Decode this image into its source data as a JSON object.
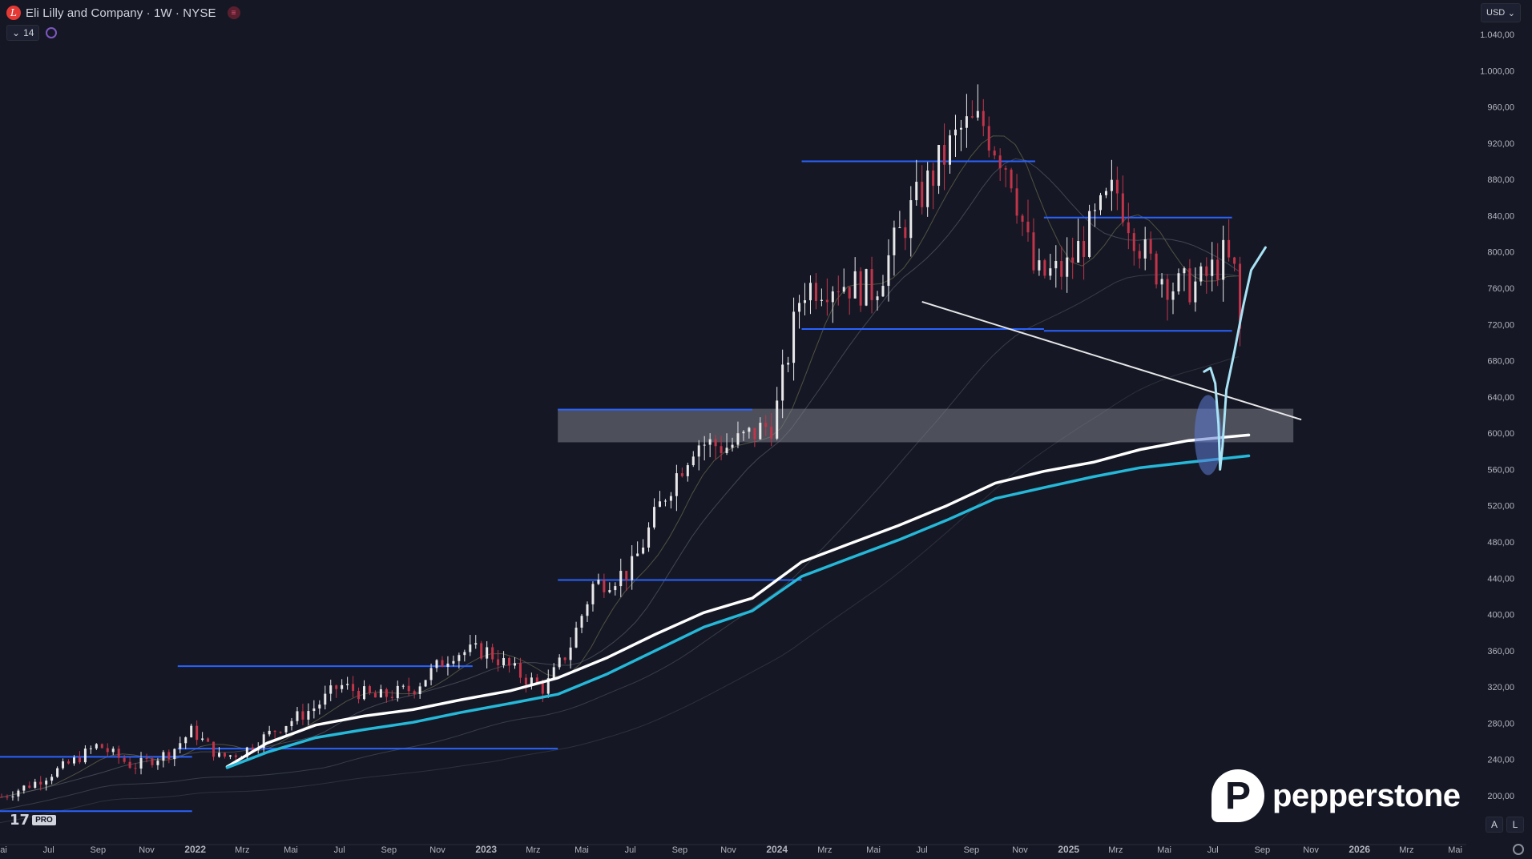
{
  "header": {
    "title": "Eli Lilly and Company · 1W · NYSE",
    "logo_letter": "L",
    "indicator_count": "14"
  },
  "currency": {
    "label": "USD",
    "chevron": "⌄"
  },
  "scale_buttons": {
    "auto": "A",
    "log": "L"
  },
  "tradingview": {
    "mark": "17",
    "badge": "PRO"
  },
  "watermark": {
    "brand": "pepperstone",
    "icon_letter": "P"
  },
  "colors": {
    "background": "#151824",
    "up_candle": "#e8e8ea",
    "down_candle": "#c2344a",
    "ema_white": "#ffffff",
    "ema_cyan": "#26b8d9",
    "level_lines": "#2962ff",
    "zone_fill": "#7b7e88",
    "drawing_cyan": "#a8e3f5",
    "axis_text": "#b2b5be"
  },
  "chart_data": {
    "type": "candlestick",
    "symbol": "Eli Lilly and Company",
    "interval": "1W",
    "exchange": "NYSE",
    "y_axis_ticks": [
      "1.040,00",
      "1.000,00",
      "960,00",
      "920,00",
      "880,00",
      "840,00",
      "800,00",
      "760,00",
      "720,00",
      "680,00",
      "640,00",
      "600,00",
      "560,00",
      "520,00",
      "480,00",
      "440,00",
      "400,00",
      "360,00",
      "320,00",
      "280,00",
      "240,00",
      "200,00"
    ],
    "x_axis_ticks": [
      "Mai",
      "Jul",
      "Sep",
      "Nov",
      "2022",
      "Mrz",
      "Mai",
      "Jul",
      "Sep",
      "Nov",
      "2023",
      "Mrz",
      "Mai",
      "Jul",
      "Sep",
      "Nov",
      "2024",
      "Mrz",
      "Mai",
      "Jul",
      "Sep",
      "Nov",
      "2025",
      "Mrz",
      "Mai",
      "Jul",
      "Sep",
      "Nov",
      "2026",
      "Mrz",
      "Mai"
    ],
    "ylim": [
      170,
      1060
    ],
    "x_range": [
      "2021-05-01",
      "2026-05-15"
    ],
    "close_path": [
      [
        "2021-05-01",
        198
      ],
      [
        "2021-06-15",
        215
      ],
      [
        "2021-08-01",
        238
      ],
      [
        "2021-09-01",
        256
      ],
      [
        "2021-10-15",
        232
      ],
      [
        "2021-12-01",
        248
      ],
      [
        "2021-12-28",
        272
      ],
      [
        "2022-02-01",
        242
      ],
      [
        "2022-03-01",
        248
      ],
      [
        "2022-04-15",
        275
      ],
      [
        "2022-06-01",
        298
      ],
      [
        "2022-07-01",
        322
      ],
      [
        "2022-08-15",
        308
      ],
      [
        "2022-10-01",
        318
      ],
      [
        "2022-11-20",
        358
      ],
      [
        "2023-01-01",
        360
      ],
      [
        "2023-02-15",
        332
      ],
      [
        "2023-03-15",
        318
      ],
      [
        "2023-04-15",
        362
      ],
      [
        "2023-05-15",
        432
      ],
      [
        "2023-07-01",
        448
      ],
      [
        "2023-08-15",
        535
      ],
      [
        "2023-09-20",
        590
      ],
      [
        "2023-11-01",
        585
      ],
      [
        "2023-12-28",
        612
      ],
      [
        "2024-02-01",
        760
      ],
      [
        "2024-03-15",
        768
      ],
      [
        "2024-05-01",
        758
      ],
      [
        "2024-06-15",
        842
      ],
      [
        "2024-08-01",
        910
      ],
      [
        "2024-08-20",
        935
      ],
      [
        "2024-09-15",
        942
      ],
      [
        "2024-10-20",
        890
      ],
      [
        "2024-11-20",
        772
      ],
      [
        "2024-12-28",
        780
      ],
      [
        "2025-02-01",
        830
      ],
      [
        "2025-03-01",
        870
      ],
      [
        "2025-04-10",
        790
      ],
      [
        "2025-05-15",
        760
      ],
      [
        "2025-06-15",
        765
      ],
      [
        "2025-07-15",
        795
      ],
      [
        "2025-08-01",
        770
      ],
      [
        "2025-08-08",
        635
      ]
    ],
    "ema_white_path": [
      [
        "2022-02-10",
        232
      ],
      [
        "2022-04-01",
        258
      ],
      [
        "2022-06-01",
        278
      ],
      [
        "2022-08-01",
        288
      ],
      [
        "2022-10-01",
        295
      ],
      [
        "2022-12-01",
        306
      ],
      [
        "2023-02-01",
        316
      ],
      [
        "2023-04-01",
        330
      ],
      [
        "2023-06-01",
        352
      ],
      [
        "2023-08-01",
        378
      ],
      [
        "2023-10-01",
        402
      ],
      [
        "2023-12-01",
        418
      ],
      [
        "2024-02-01",
        458
      ],
      [
        "2024-04-01",
        478
      ],
      [
        "2024-06-01",
        498
      ],
      [
        "2024-08-01",
        520
      ],
      [
        "2024-10-01",
        545
      ],
      [
        "2024-12-01",
        558
      ],
      [
        "2025-02-01",
        568
      ],
      [
        "2025-04-01",
        582
      ],
      [
        "2025-06-01",
        592
      ],
      [
        "2025-08-15",
        598
      ]
    ],
    "ema_cyan_path": [
      [
        "2022-02-10",
        231
      ],
      [
        "2022-04-01",
        248
      ],
      [
        "2022-06-01",
        264
      ],
      [
        "2022-08-01",
        273
      ],
      [
        "2022-10-01",
        281
      ],
      [
        "2022-12-01",
        292
      ],
      [
        "2023-02-01",
        302
      ],
      [
        "2023-04-01",
        312
      ],
      [
        "2023-06-01",
        334
      ],
      [
        "2023-08-01",
        360
      ],
      [
        "2023-10-01",
        386
      ],
      [
        "2023-12-01",
        404
      ],
      [
        "2024-02-01",
        442
      ],
      [
        "2024-04-01",
        462
      ],
      [
        "2024-06-01",
        482
      ],
      [
        "2024-08-01",
        504
      ],
      [
        "2024-10-01",
        528
      ],
      [
        "2024-12-01",
        540
      ],
      [
        "2025-02-01",
        552
      ],
      [
        "2025-04-01",
        562
      ],
      [
        "2025-06-01",
        568
      ],
      [
        "2025-08-15",
        575
      ]
    ],
    "horizontal_levels": [
      {
        "price": 900,
        "from": "2024-02-01",
        "to": "2024-11-20"
      },
      {
        "price": 838,
        "from": "2024-12-01",
        "to": "2025-07-25"
      },
      {
        "price": 715,
        "from": "2024-02-01",
        "to": "2024-12-01"
      },
      {
        "price": 713,
        "from": "2024-12-01",
        "to": "2025-07-25"
      },
      {
        "price": 626,
        "from": "2023-04-01",
        "to": "2023-12-01"
      },
      {
        "price": 438,
        "from": "2023-04-01",
        "to": "2024-02-01"
      },
      {
        "price": 343,
        "from": "2021-12-10",
        "to": "2022-12-15"
      },
      {
        "price": 252,
        "from": "2021-12-10",
        "to": "2023-04-01"
      },
      {
        "price": 243,
        "from": "2021-05-01",
        "to": "2021-12-28"
      },
      {
        "price": 183,
        "from": "2021-05-01",
        "to": "2021-12-28"
      }
    ],
    "zone": {
      "top": 627,
      "bottom": 590,
      "from": "2023-04-01",
      "to": "2025-10-10"
    },
    "trendline": {
      "from": [
        "2024-07-01",
        745
      ],
      "to": [
        "2025-10-20",
        615
      ]
    }
  }
}
